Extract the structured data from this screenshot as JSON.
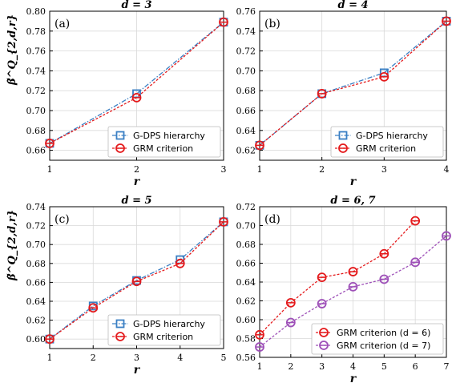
{
  "chart_data": [
    {
      "type": "line",
      "title": "d = 3",
      "panel_label": "(a)",
      "xlabel": "r",
      "ylabel": "β̃^Q_{2,d,r}",
      "xlim": [
        1,
        3
      ],
      "ylim": [
        0.65,
        0.8
      ],
      "xticks": [
        1,
        2,
        3
      ],
      "yticks": [
        0.66,
        0.68,
        0.7,
        0.72,
        0.74,
        0.76,
        0.78,
        0.8
      ],
      "grid": true,
      "legend_position": "bottom-right",
      "series": [
        {
          "name": "G-DPS hierarchy",
          "color": "#3a7fc4",
          "marker": "square",
          "x": [
            1,
            2,
            3
          ],
          "values": [
            0.667,
            0.717,
            0.789
          ]
        },
        {
          "name": "GRM criterion",
          "color": "#e41a1c",
          "marker": "circle",
          "x": [
            1,
            2,
            3
          ],
          "values": [
            0.667,
            0.713,
            0.789
          ]
        }
      ]
    },
    {
      "type": "line",
      "title": "d = 4",
      "panel_label": "(b)",
      "xlabel": "r",
      "ylabel": "",
      "xlim": [
        1,
        4
      ],
      "ylim": [
        0.61,
        0.76
      ],
      "xticks": [
        1,
        2,
        3,
        4
      ],
      "yticks": [
        0.62,
        0.64,
        0.66,
        0.68,
        0.7,
        0.72,
        0.74,
        0.76
      ],
      "grid": true,
      "legend_position": "bottom-right",
      "series": [
        {
          "name": "G-DPS hierarchy",
          "color": "#3a7fc4",
          "marker": "square",
          "x": [
            1,
            2,
            3,
            4
          ],
          "values": [
            0.625,
            0.677,
            0.698,
            0.75
          ]
        },
        {
          "name": "GRM criterion",
          "color": "#e41a1c",
          "marker": "circle",
          "x": [
            1,
            2,
            3,
            4
          ],
          "values": [
            0.625,
            0.677,
            0.694,
            0.75
          ]
        }
      ]
    },
    {
      "type": "line",
      "title": "d = 5",
      "panel_label": "(c)",
      "xlabel": "r",
      "ylabel": "β̃^Q_{2,d,r}",
      "xlim": [
        1,
        5
      ],
      "ylim": [
        0.59,
        0.74
      ],
      "xticks": [
        1,
        2,
        3,
        4,
        5
      ],
      "yticks": [
        0.6,
        0.62,
        0.64,
        0.66,
        0.68,
        0.7,
        0.72,
        0.74
      ],
      "grid": true,
      "legend_position": "bottom-right",
      "series": [
        {
          "name": "G-DPS hierarchy",
          "color": "#3a7fc4",
          "marker": "square",
          "x": [
            1,
            2,
            3,
            4,
            5
          ],
          "values": [
            0.6,
            0.635,
            0.662,
            0.684,
            0.724
          ]
        },
        {
          "name": "GRM criterion",
          "color": "#e41a1c",
          "marker": "circle",
          "x": [
            1,
            2,
            3,
            4,
            5
          ],
          "values": [
            0.6,
            0.633,
            0.661,
            0.68,
            0.724
          ]
        }
      ]
    },
    {
      "type": "line",
      "title": "d = 6, 7",
      "panel_label": "(d)",
      "xlabel": "r",
      "ylabel": "",
      "xlim": [
        1,
        7
      ],
      "ylim": [
        0.56,
        0.72
      ],
      "xticks": [
        1,
        2,
        3,
        4,
        5,
        6,
        7
      ],
      "yticks": [
        0.56,
        0.58,
        0.6,
        0.62,
        0.64,
        0.66,
        0.68,
        0.7,
        0.72
      ],
      "grid": true,
      "legend_position": "bottom-right",
      "series": [
        {
          "name": "GRM criterion (d = 6)",
          "color": "#e41a1c",
          "marker": "circle",
          "x": [
            1,
            2,
            3,
            4,
            5,
            6
          ],
          "values": [
            0.584,
            0.618,
            0.645,
            0.651,
            0.67,
            0.705
          ]
        },
        {
          "name": "GRM criterion (d = 7)",
          "color": "#9e50b8",
          "marker": "circle",
          "x": [
            1,
            2,
            3,
            4,
            5,
            6,
            7
          ],
          "values": [
            0.571,
            0.597,
            0.617,
            0.635,
            0.643,
            0.661,
            0.689
          ]
        }
      ]
    }
  ]
}
